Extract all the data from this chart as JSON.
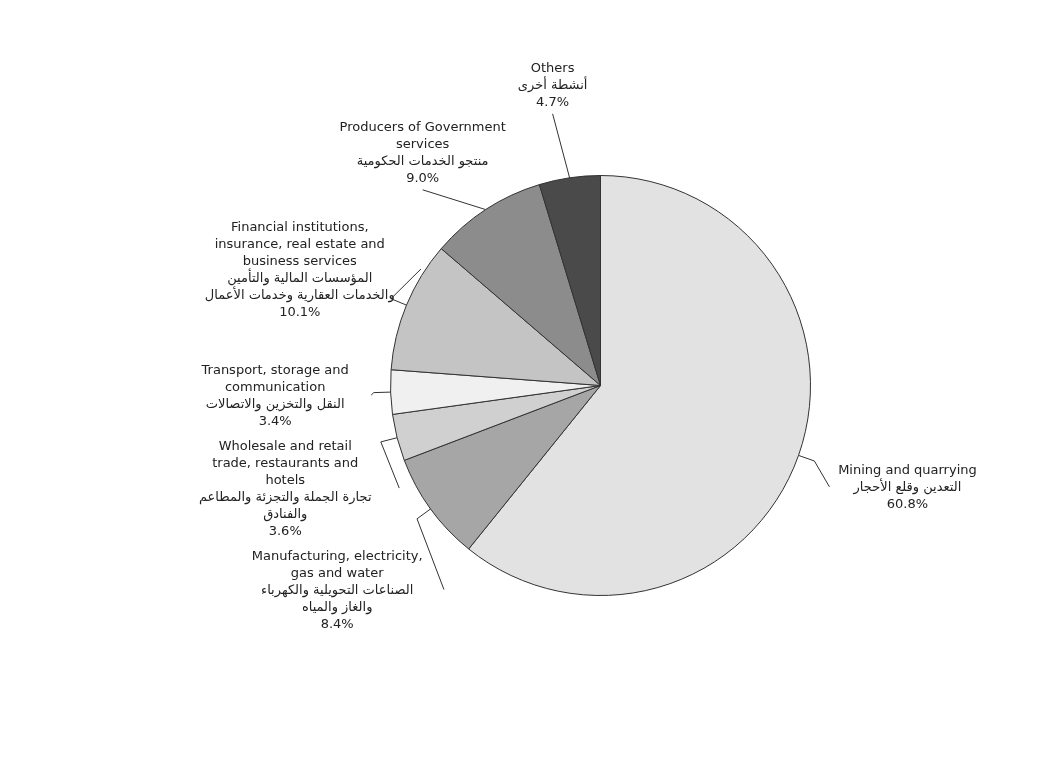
{
  "chart_data": {
    "type": "pie",
    "categories": [
      "Mining and quarrying\nالتعدين وقلع الأحجار",
      "Manufacturing, electricity,\ngas and water\nالصناعات التحويلية والكهرباء\nوالغاز والمياه",
      "Wholesale and retail\ntrade, restaurants and\nhotels\nتجارة الجملة والتجزئة والمطاعم\nوالفنادق",
      "Transport, storage and\ncommunication\nالنقل والتخزين والاتصالات",
      "Financial institutions,\ninsurance, real estate and\nbusiness services\nالمؤسسات المالية والتأمين\nوالخدمات العقارية وخدمات الأعمال",
      "Producers of Government\nservices\nمنتجو الخدمات الحكومية",
      "Others\nأنشطة أخرى"
    ],
    "values": [
      60.8,
      8.4,
      3.6,
      3.4,
      10.1,
      9.0,
      4.7
    ],
    "value_labels": [
      "60.8%",
      "8.4%",
      "3.6%",
      "3.4%",
      "10.1%",
      "9.0%",
      "4.7%"
    ],
    "colors": [
      "#e2e2e2",
      "#a6a6a6",
      "#d0d0d0",
      "#f0f0f0",
      "#c4c4c4",
      "#8c8c8c",
      "#4a4a4a"
    ]
  }
}
